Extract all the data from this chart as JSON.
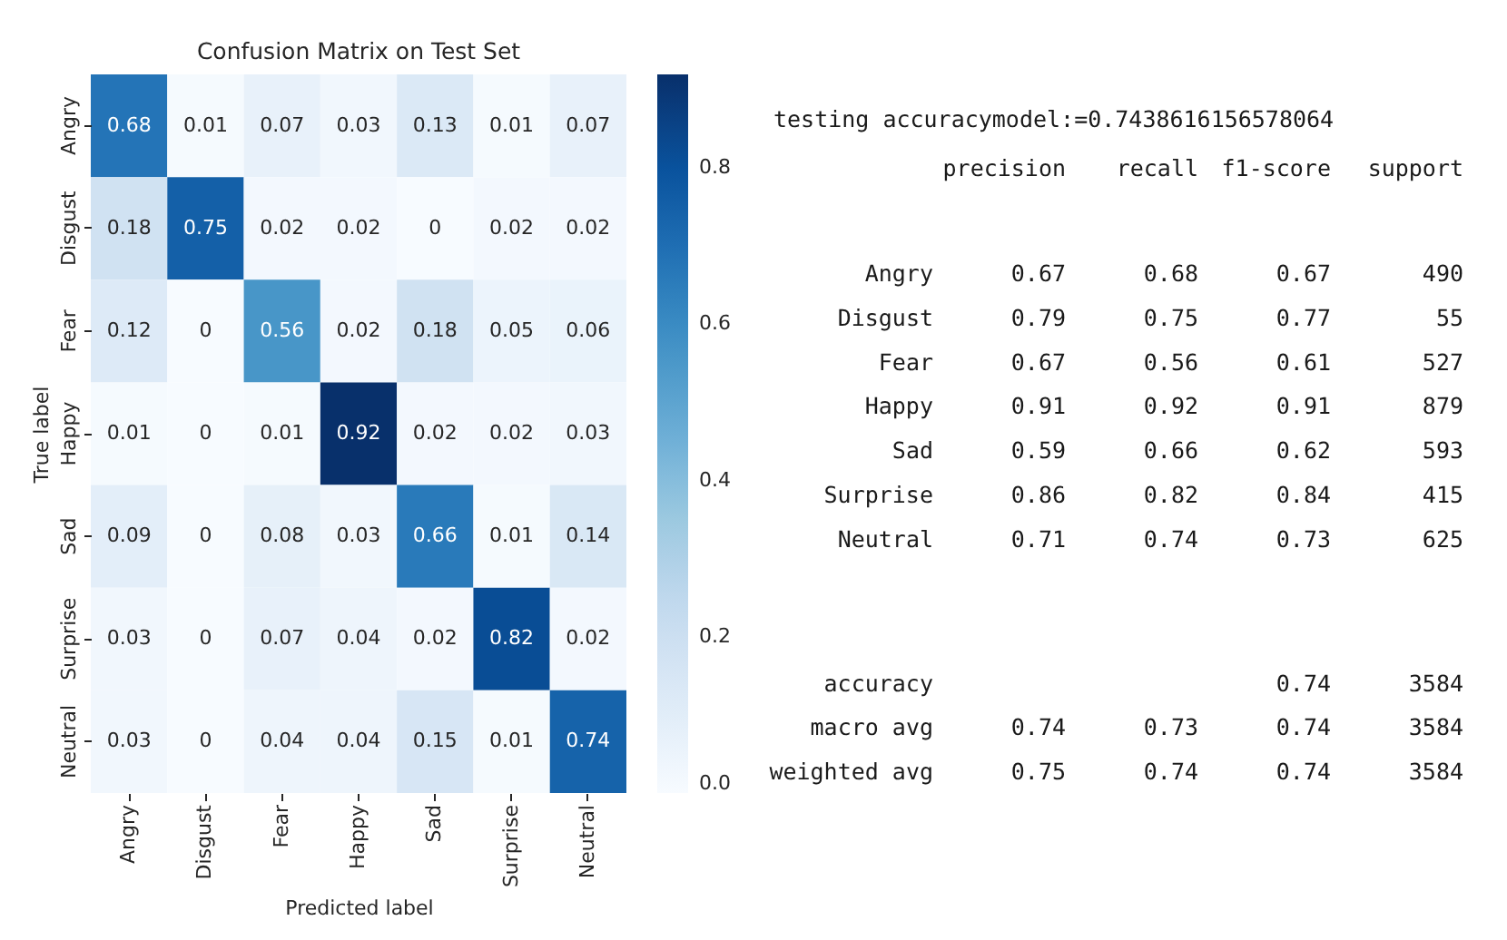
{
  "chart_data": [
    {
      "type": "heatmap",
      "title": "Confusion Matrix on Test Set",
      "xlabel": "Predicted label",
      "ylabel": "True label",
      "categories": [
        "Angry",
        "Disgust",
        "Fear",
        "Happy",
        "Sad",
        "Surprise",
        "Neutral"
      ],
      "y_categories": [
        "Angry",
        "Disgust",
        "Fear",
        "Happy",
        "Sad",
        "Surprise",
        "Neutral"
      ],
      "cells": [
        [
          0.68,
          0.01,
          0.07,
          0.03,
          0.13,
          0.01,
          0.07
        ],
        [
          0.18,
          0.75,
          0.02,
          0.02,
          0,
          0.02,
          0.02
        ],
        [
          0.12,
          0,
          0.56,
          0.02,
          0.18,
          0.05,
          0.06
        ],
        [
          0.01,
          0,
          0.01,
          0.92,
          0.02,
          0.02,
          0.03
        ],
        [
          0.09,
          0,
          0.08,
          0.03,
          0.66,
          0.01,
          0.14
        ],
        [
          0.03,
          0,
          0.07,
          0.04,
          0.02,
          0.82,
          0.02
        ],
        [
          0.03,
          0,
          0.04,
          0.04,
          0.15,
          0.01,
          0.74
        ]
      ],
      "clim": [
        0,
        0.92
      ],
      "cticks": [
        {
          "value": 0,
          "label": "0.0"
        },
        0.2,
        0.4,
        0.6,
        0.8
      ],
      "data_labels": true
    },
    {
      "type": "other",
      "title": "testing accuracymodel:=0.7438616156578064",
      "categories": [
        "precision",
        "recall",
        "f1-score",
        "support"
      ],
      "y_categories": [
        "Angry",
        "Disgust",
        "Fear",
        "Happy",
        "Sad",
        "Surprise",
        "Neutral",
        null,
        "accuracy",
        "macro avg",
        "weighted avg"
      ],
      "cell_labels": [
        [
          "0.67",
          "0.68",
          "0.67",
          "490"
        ],
        [
          "0.79",
          "0.75",
          "0.77",
          "55"
        ],
        [
          "0.67",
          "0.56",
          "0.61",
          "527"
        ],
        [
          "0.91",
          "0.92",
          "0.91",
          "879"
        ],
        [
          "0.59",
          "0.66",
          "0.62",
          "593"
        ],
        [
          "0.86",
          "0.82",
          "0.84",
          "415"
        ],
        [
          "0.71",
          "0.74",
          "0.73",
          "625"
        ],
        [
          null,
          null,
          null,
          null
        ],
        [
          null,
          null,
          "0.74",
          "3584"
        ],
        [
          "0.74",
          "0.73",
          "0.74",
          "3584"
        ],
        [
          "0.75",
          "0.74",
          "0.74",
          "3584"
        ]
      ]
    }
  ]
}
